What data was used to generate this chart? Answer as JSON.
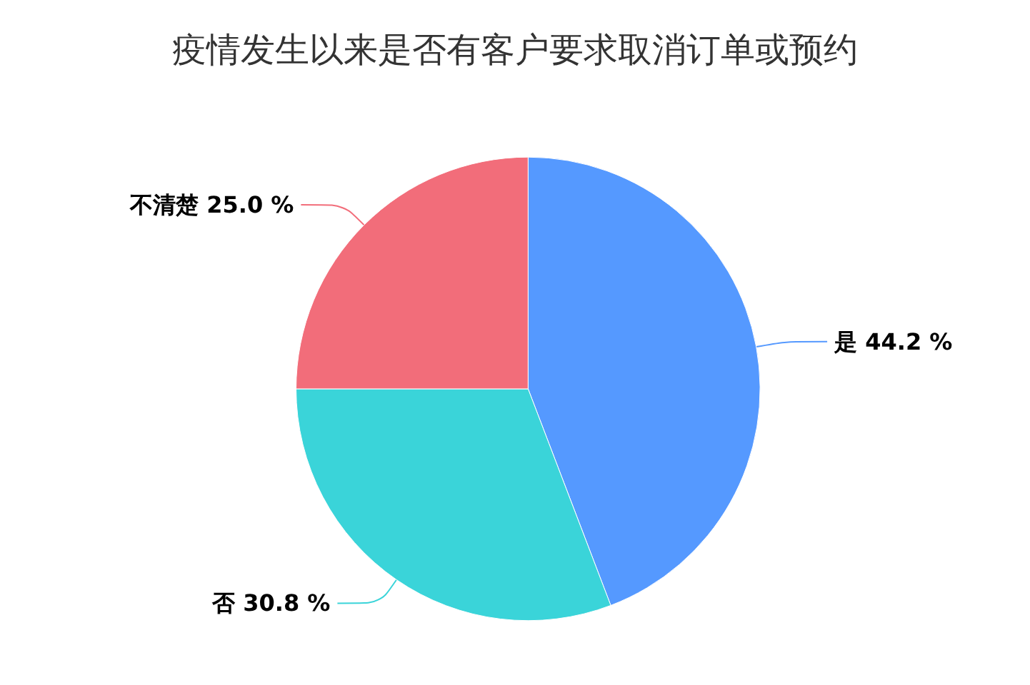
{
  "chart_data": {
    "type": "pie",
    "title": "疫情发生以来是否有客户要求取消订单或预约",
    "categories": [
      "是",
      "否",
      "不清楚"
    ],
    "values": [
      44.2,
      30.8,
      25.0
    ],
    "colors": [
      "#5599ff",
      "#3ad4d9",
      "#f26d7a"
    ],
    "value_labels": [
      "44.2 %",
      "30.8 %",
      "25.0 %"
    ],
    "legend": false
  }
}
